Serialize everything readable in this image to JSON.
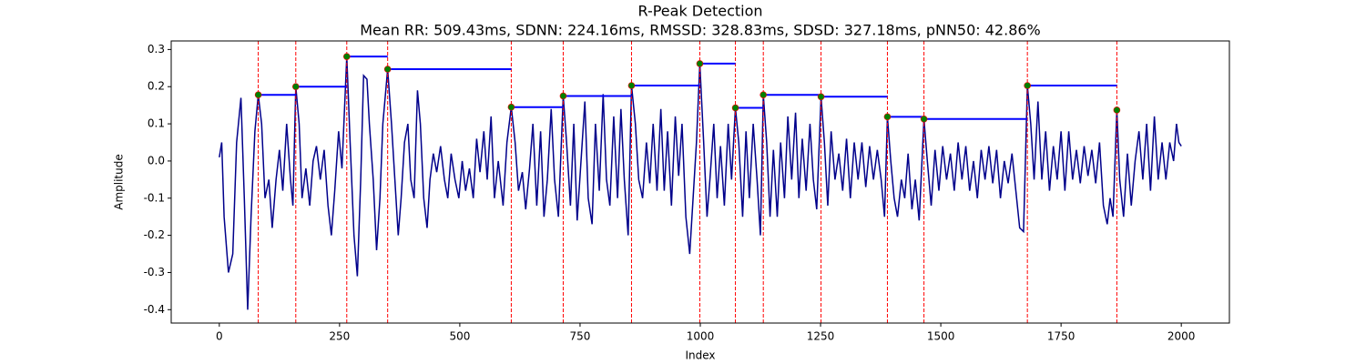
{
  "chart_data": {
    "type": "line",
    "title": "R-Peak Detection",
    "subtitle": "Mean RR: 509.43ms, SDNN: 224.16ms, RMSSD: 328.83ms, SDSD: 327.18ms, pNN50: 42.86%",
    "xlabel": "Index",
    "ylabel": "Amplitude",
    "xlim": [
      -100,
      2100
    ],
    "ylim": [
      -0.436,
      0.323
    ],
    "xticks": [
      0,
      250,
      500,
      750,
      1000,
      1250,
      1500,
      1750,
      2000
    ],
    "yticks": [
      -0.4,
      -0.3,
      -0.2,
      -0.1,
      {
        "value": 0,
        "label": "0.0"
      },
      0.1,
      0.2,
      0.3
    ],
    "grid": false,
    "x": [
      0,
      5,
      10,
      19,
      28,
      36,
      45,
      52,
      59,
      66,
      74,
      81,
      88,
      95,
      103,
      110,
      118,
      125,
      132,
      140,
      148,
      153,
      159,
      166,
      172,
      180,
      188,
      195,
      202,
      210,
      218,
      226,
      233,
      240,
      248,
      255,
      265,
      272,
      280,
      287,
      294,
      300,
      307,
      312,
      320,
      327,
      334,
      340,
      350,
      358,
      365,
      372,
      378,
      385,
      392,
      398,
      405,
      412,
      418,
      425,
      432,
      438,
      445,
      452,
      460,
      468,
      475,
      482,
      490,
      498,
      505,
      512,
      520,
      528,
      535,
      542,
      550,
      557,
      565,
      572,
      580,
      590,
      598,
      607,
      615,
      622,
      630,
      637,
      645,
      652,
      660,
      668,
      675,
      682,
      690,
      697,
      705,
      715,
      722,
      730,
      737,
      744,
      752,
      760,
      767,
      775,
      782,
      790,
      798,
      805,
      812,
      820,
      828,
      835,
      842,
      850,
      857,
      865,
      872,
      880,
      888,
      895,
      902,
      910,
      918,
      925,
      932,
      940,
      948,
      955,
      962,
      970,
      978,
      985,
      992,
      999,
      1007,
      1014,
      1020,
      1028,
      1035,
      1042,
      1050,
      1058,
      1065,
      1073,
      1080,
      1088,
      1095,
      1102,
      1110,
      1118,
      1125,
      1131,
      1138,
      1145,
      1152,
      1160,
      1167,
      1175,
      1182,
      1190,
      1198,
      1205,
      1212,
      1220,
      1228,
      1235,
      1242,
      1251,
      1258,
      1265,
      1272,
      1280,
      1288,
      1296,
      1304,
      1312,
      1320,
      1328,
      1336,
      1344,
      1352,
      1360,
      1368,
      1376,
      1383,
      1389,
      1396,
      1403,
      1410,
      1418,
      1425,
      1432,
      1440,
      1447,
      1455,
      1465,
      1472,
      1480,
      1488,
      1496,
      1504,
      1512,
      1520,
      1528,
      1536,
      1544,
      1552,
      1560,
      1568,
      1576,
      1584,
      1592,
      1600,
      1608,
      1616,
      1624,
      1632,
      1640,
      1648,
      1656,
      1664,
      1672,
      1680,
      1687,
      1694,
      1702,
      1710,
      1718,
      1726,
      1734,
      1742,
      1750,
      1758,
      1766,
      1774,
      1782,
      1790,
      1798,
      1806,
      1814,
      1822,
      1830,
      1838,
      1846,
      1852,
      1858,
      1866,
      1872,
      1880,
      1888,
      1896,
      1904,
      1912,
      1920,
      1928,
      1936,
      1944,
      1952,
      1960,
      1968,
      1976,
      1984,
      1990,
      1995,
      2000
    ],
    "series": [
      {
        "color": "#00008b",
        "values": [
          0.01,
          0.05,
          -0.15,
          -0.3,
          -0.25,
          0.05,
          0.17,
          -0.1,
          -0.4,
          -0.15,
          0.08,
          0.178,
          0.1,
          -0.1,
          -0.05,
          -0.18,
          -0.05,
          0.03,
          -0.08,
          0.1,
          -0.05,
          -0.12,
          0.2,
          0.1,
          -0.1,
          -0.02,
          -0.12,
          0.0,
          0.04,
          -0.05,
          0.03,
          -0.12,
          -0.2,
          -0.08,
          0.08,
          -0.02,
          0.281,
          0.05,
          -0.2,
          -0.31,
          -0.05,
          0.23,
          0.22,
          0.1,
          -0.05,
          -0.24,
          -0.1,
          0.1,
          0.247,
          0.1,
          -0.05,
          -0.2,
          -0.1,
          0.05,
          0.1,
          -0.05,
          -0.1,
          0.19,
          0.1,
          -0.1,
          -0.18,
          -0.05,
          0.02,
          -0.03,
          0.04,
          -0.05,
          -0.1,
          0.02,
          -0.05,
          -0.1,
          0.0,
          -0.08,
          -0.02,
          -0.1,
          0.06,
          -0.03,
          0.08,
          -0.05,
          0.12,
          -0.1,
          0.0,
          -0.12,
          0.05,
          0.145,
          0.05,
          -0.08,
          -0.03,
          -0.13,
          -0.02,
          0.1,
          -0.12,
          0.08,
          -0.15,
          -0.05,
          0.14,
          -0.05,
          -0.15,
          0.175,
          0.05,
          -0.12,
          0.1,
          -0.16,
          0.0,
          0.16,
          -0.1,
          -0.17,
          0.1,
          -0.08,
          0.18,
          -0.05,
          -0.12,
          0.12,
          -0.1,
          0.14,
          -0.05,
          -0.2,
          0.203,
          0.1,
          -0.05,
          -0.1,
          0.05,
          -0.06,
          0.1,
          -0.08,
          0.14,
          -0.08,
          0.08,
          -0.12,
          0.12,
          -0.04,
          0.1,
          -0.15,
          -0.25,
          -0.1,
          0.05,
          0.262,
          0.05,
          -0.15,
          -0.05,
          0.1,
          -0.1,
          0.04,
          -0.12,
          0.1,
          -0.05,
          0.143,
          0.05,
          -0.15,
          0.08,
          -0.1,
          0.1,
          -0.05,
          -0.2,
          0.178,
          0.05,
          -0.15,
          0.03,
          -0.15,
          0.05,
          -0.1,
          0.12,
          -0.05,
          0.13,
          -0.1,
          0.06,
          -0.08,
          0.1,
          -0.05,
          -0.13,
          0.173,
          0.05,
          -0.12,
          0.08,
          -0.05,
          0.02,
          -0.08,
          0.06,
          -0.1,
          0.05,
          -0.05,
          0.05,
          -0.07,
          0.04,
          -0.05,
          0.03,
          -0.05,
          -0.15,
          0.119,
          0.0,
          -0.1,
          -0.15,
          -0.05,
          -0.1,
          0.02,
          -0.13,
          -0.05,
          -0.16,
          0.113,
          0.0,
          -0.12,
          0.03,
          -0.08,
          0.04,
          -0.05,
          0.02,
          -0.08,
          0.05,
          -0.05,
          0.04,
          -0.08,
          0.0,
          -0.1,
          0.03,
          -0.05,
          0.04,
          -0.06,
          0.03,
          -0.1,
          0.0,
          -0.06,
          0.02,
          -0.08,
          -0.18,
          -0.19,
          0.203,
          0.1,
          -0.05,
          0.16,
          -0.05,
          0.08,
          -0.08,
          0.04,
          -0.05,
          0.08,
          -0.08,
          0.08,
          -0.05,
          0.03,
          -0.06,
          0.04,
          -0.04,
          0.03,
          -0.06,
          0.05,
          -0.12,
          -0.17,
          -0.1,
          -0.15,
          0.137,
          -0.05,
          -0.15,
          0.02,
          -0.12,
          0.0,
          0.08,
          -0.05,
          0.1,
          -0.08,
          0.12,
          -0.05,
          0.05,
          -0.05,
          0.05,
          0.0,
          0.1,
          0.05,
          0.04
        ]
      }
    ],
    "peaks": {
      "x": [
        81,
        159,
        265,
        350,
        607,
        715,
        857,
        999,
        1073,
        1131,
        1251,
        1389,
        1465,
        1680,
        1866
      ],
      "values": [
        0.178,
        0.2,
        0.281,
        0.247,
        0.145,
        0.175,
        0.203,
        0.262,
        0.143,
        0.178,
        0.173,
        0.119,
        0.113,
        0.203,
        0.137
      ],
      "color": "#008000",
      "edge_color": "#ff0000",
      "vline_color": "#ff0000",
      "rr_color": "#0000ff"
    }
  }
}
